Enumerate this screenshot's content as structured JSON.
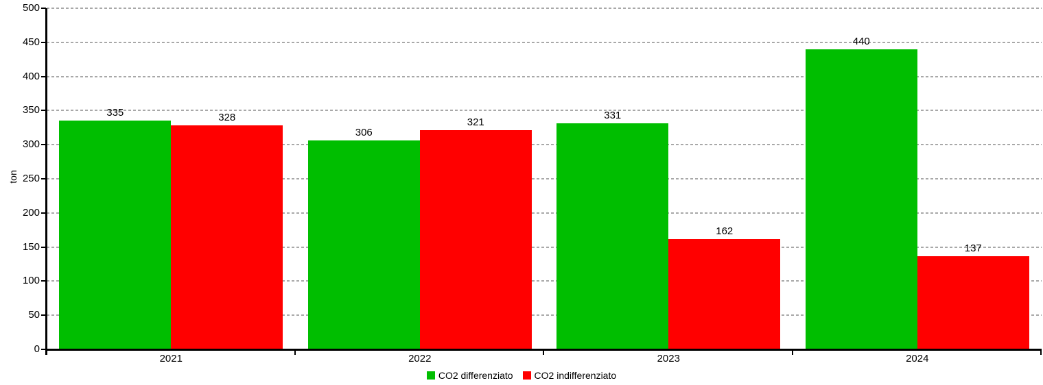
{
  "chart_data": {
    "type": "bar",
    "title": "",
    "categories": [
      "2021",
      "2022",
      "2023",
      "2024"
    ],
    "series": [
      {
        "name": "CO2 differenziato",
        "color": "#00be00",
        "values": [
          335,
          306,
          331,
          440
        ]
      },
      {
        "name": "CO2 indifferenziato",
        "color": "#ff0000",
        "values": [
          328,
          321,
          162,
          137
        ]
      }
    ],
    "xlabel": "",
    "ylabel": "ton",
    "ylim": [
      0,
      500
    ],
    "y_ticks": [
      0,
      50,
      100,
      150,
      200,
      250,
      300,
      350,
      400,
      450,
      500
    ],
    "grid": "horizontal-dashed",
    "grid_color": "#a8a8a8",
    "axis_color": "#000000",
    "bar_labels_shown": true,
    "legend_position": "bottom-center"
  }
}
